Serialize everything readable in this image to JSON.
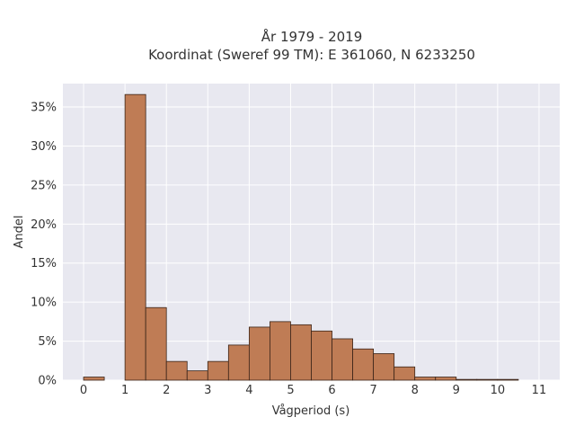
{
  "chart_data": {
    "type": "bar",
    "title_line1": "År 1979 - 2019",
    "title_line2": "Koordinat (Sweref 99 TM): E 361060, N 6233250",
    "xlabel": "Vågperiod (s)",
    "ylabel": "Andel",
    "xlim": [
      -0.5,
      11.5
    ],
    "ylim": [
      0,
      0.38
    ],
    "x_ticks": [
      0,
      1,
      2,
      3,
      4,
      5,
      6,
      7,
      8,
      9,
      10,
      11
    ],
    "y_ticks": [
      0,
      0.05,
      0.1,
      0.15,
      0.2,
      0.25,
      0.3,
      0.35
    ],
    "y_tick_labels": [
      "0%",
      "5%",
      "10%",
      "15%",
      "20%",
      "25%",
      "30%",
      "35%"
    ],
    "grid": true,
    "bin_width": 0.5,
    "bars": [
      {
        "x0": 0.0,
        "value": 0.004
      },
      {
        "x0": 1.0,
        "value": 0.366
      },
      {
        "x0": 1.5,
        "value": 0.093
      },
      {
        "x0": 2.0,
        "value": 0.024
      },
      {
        "x0": 2.5,
        "value": 0.012
      },
      {
        "x0": 3.0,
        "value": 0.024
      },
      {
        "x0": 3.5,
        "value": 0.045
      },
      {
        "x0": 4.0,
        "value": 0.068
      },
      {
        "x0": 4.5,
        "value": 0.075
      },
      {
        "x0": 5.0,
        "value": 0.071
      },
      {
        "x0": 5.5,
        "value": 0.063
      },
      {
        "x0": 6.0,
        "value": 0.053
      },
      {
        "x0": 6.5,
        "value": 0.04
      },
      {
        "x0": 7.0,
        "value": 0.034
      },
      {
        "x0": 7.5,
        "value": 0.017
      },
      {
        "x0": 8.0,
        "value": 0.004
      },
      {
        "x0": 8.5,
        "value": 0.004
      },
      {
        "x0": 9.0,
        "value": 0.001
      },
      {
        "x0": 9.5,
        "value": 0.001
      },
      {
        "x0": 10.0,
        "value": 0.001
      }
    ],
    "colors": {
      "bar_fill": "#bf7c55",
      "bar_stroke": "#3a2418",
      "plot_background": "#e8e8f0",
      "grid": "#ffffff"
    }
  }
}
